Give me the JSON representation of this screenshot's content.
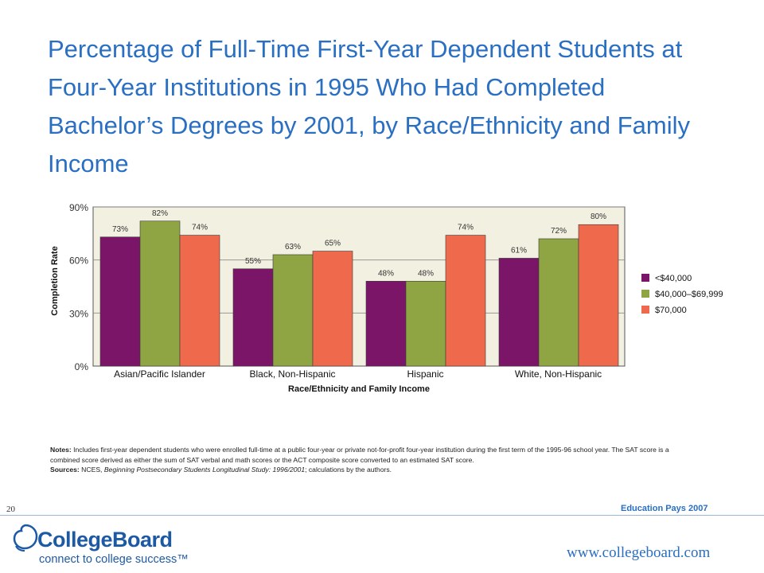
{
  "title": "Percentage of Full-Time First-Year Dependent Students at Four-Year Institutions in 1995 Who Had Completed Bachelor’s Degrees by 2001, by Race/Ethnicity and Family Income",
  "chart_data": {
    "type": "bar",
    "title": "Percentage of Full-Time First-Year Dependent Students at Four-Year Institutions in 1995 Who Had Completed Bachelor’s Degrees by 2001, by Race/Ethnicity and Family Income",
    "xlabel": "Race/Ethnicity and Family Income",
    "ylabel": "Completion Rate",
    "categories": [
      "Asian/Pacific Islander",
      "Black, Non-Hispanic",
      "Hispanic",
      "White, Non-Hispanic"
    ],
    "series": [
      {
        "name": "<$40,000",
        "values": [
          73,
          55,
          48,
          61
        ],
        "color": "#7b1568"
      },
      {
        "name": "$40,000–$69,999",
        "values": [
          82,
          63,
          48,
          72
        ],
        "color": "#8fa443"
      },
      {
        "name": "$70,000",
        "values": [
          74,
          65,
          74,
          80
        ],
        "color": "#ef6a4c"
      }
    ],
    "ylim": [
      0,
      90
    ],
    "yticks": [
      0,
      30,
      60,
      90
    ],
    "ytick_labels": [
      "0%",
      "30%",
      "60%",
      "90%"
    ],
    "value_suffix": "%",
    "grid": true,
    "plot_background": "#f2f0e1",
    "legend_position": "right"
  },
  "notes": {
    "notes_label": "Notes:",
    "notes_text": " Includes first-year dependent students who were enrolled full-time at a public four-year or private not-for-profit four-year institution during the first term of the 1995-96 school year. The SAT score is a combined score derived as either the sum of SAT verbal and math scores or the ACT composite score converted to an estimated SAT score.",
    "sources_label": "Sources:",
    "sources_pre": " NCES, ",
    "sources_italic": "Beginning Postsecondary Students Longitudinal Study: 1996/2001",
    "sources_post": "; calculations by the authors."
  },
  "footer": {
    "page_number": "20",
    "publication": "Education Pays 2007",
    "logo_name": "CollegeBoard",
    "logo_tagline": "connect to college success™",
    "url": "www.collegeboard.com"
  },
  "icons": {
    "logo": "college-board-acorn-icon"
  }
}
